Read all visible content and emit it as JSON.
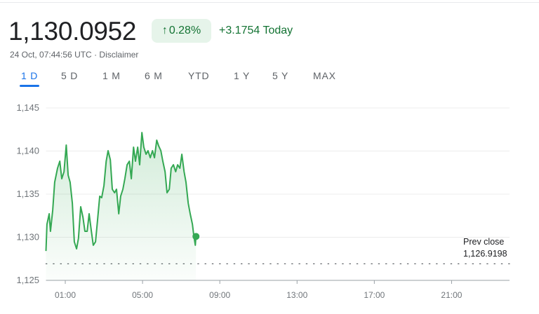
{
  "header": {
    "price": "1,130.0952",
    "change_percent": "0.28%",
    "change_icon": "arrow-up-icon",
    "change_today": "+3.1754 Today",
    "timestamp": "24 Oct, 07:44:56 UTC",
    "separator": "·",
    "disclaimer": "Disclaimer"
  },
  "tabs": [
    {
      "label": "1 D",
      "active": true
    },
    {
      "label": "5 D",
      "active": false
    },
    {
      "label": "1 M",
      "active": false
    },
    {
      "label": "6 M",
      "active": false
    },
    {
      "label": "YTD",
      "active": false
    },
    {
      "label": "1 Y",
      "active": false
    },
    {
      "label": "5 Y",
      "active": false
    },
    {
      "label": "MAX",
      "active": false
    }
  ],
  "colors": {
    "line": "#34a853",
    "positive_text": "#137333",
    "badge_bg": "#e6f4ea",
    "active_tab": "#1a73e8"
  },
  "chart_data": {
    "type": "line",
    "title": "",
    "xlabel": "",
    "ylabel": "",
    "xlim": [
      "00:00",
      "24:00"
    ],
    "ylim": [
      1125,
      1145
    ],
    "grid": true,
    "y_ticks": [
      1125,
      1130,
      1135,
      1140,
      1145
    ],
    "y_tick_labels": [
      "1,125",
      "1,130",
      "1,135",
      "1,140",
      "1,145"
    ],
    "x_ticks": [
      "01:00",
      "05:00",
      "09:00",
      "13:00",
      "17:00",
      "21:00"
    ],
    "prev_close": {
      "label": "Prev close",
      "value": 1126.9198,
      "value_label": "1,126.9198"
    },
    "series": [
      {
        "x": [
          "00:00",
          "00:03",
          "00:10",
          "00:14",
          "00:21",
          "00:27",
          "00:36",
          "00:43",
          "00:49",
          "00:56",
          "01:03",
          "01:09",
          "01:15",
          "01:22",
          "01:28",
          "01:35",
          "01:41",
          "01:48",
          "01:55",
          "02:01",
          "02:08",
          "02:14",
          "02:21",
          "02:27",
          "02:34",
          "02:40",
          "02:47",
          "02:53",
          "03:00",
          "03:07",
          "03:13",
          "03:20",
          "03:26",
          "03:33",
          "03:39",
          "03:46",
          "03:52",
          "03:59",
          "04:05",
          "04:12",
          "04:19",
          "04:25",
          "04:32",
          "04:38",
          "04:45",
          "04:51",
          "04:58",
          "05:04",
          "05:11",
          "05:17",
          "05:24",
          "05:31",
          "05:37",
          "05:44",
          "05:50",
          "05:57",
          "06:03",
          "06:10",
          "06:16",
          "06:23",
          "06:29",
          "06:36",
          "06:43",
          "06:49",
          "06:56",
          "07:02",
          "07:09",
          "07:15",
          "07:22",
          "07:28",
          "07:35",
          "07:39",
          "07:44",
          "07:46"
        ],
        "y": [
          1128.41,
          1131.5,
          1132.72,
          1130.69,
          1133.13,
          1136.38,
          1138.01,
          1138.82,
          1136.79,
          1137.6,
          1140.69,
          1137.2,
          1136.38,
          1133.94,
          1129.47,
          1128.66,
          1129.88,
          1133.54,
          1132.32,
          1130.69,
          1130.69,
          1132.72,
          1130.69,
          1129.07,
          1129.47,
          1131.91,
          1134.76,
          1134.59,
          1135.98,
          1138.82,
          1140.04,
          1138.98,
          1135.57,
          1135.16,
          1135.57,
          1132.72,
          1134.76,
          1135.57,
          1136.79,
          1138.41,
          1138.82,
          1136.79,
          1140.45,
          1138.82,
          1140.45,
          1138.41,
          1142.15,
          1140.45,
          1139.63,
          1140.04,
          1139.23,
          1140.04,
          1139.23,
          1141.26,
          1140.61,
          1140.04,
          1138.82,
          1137.6,
          1135.16,
          1135.57,
          1138.01,
          1138.41,
          1137.6,
          1138.41,
          1138.01,
          1139.63,
          1137.6,
          1136.38,
          1133.94,
          1132.72,
          1131.5,
          1130.28,
          1129.07,
          1130.0952
        ]
      }
    ]
  }
}
